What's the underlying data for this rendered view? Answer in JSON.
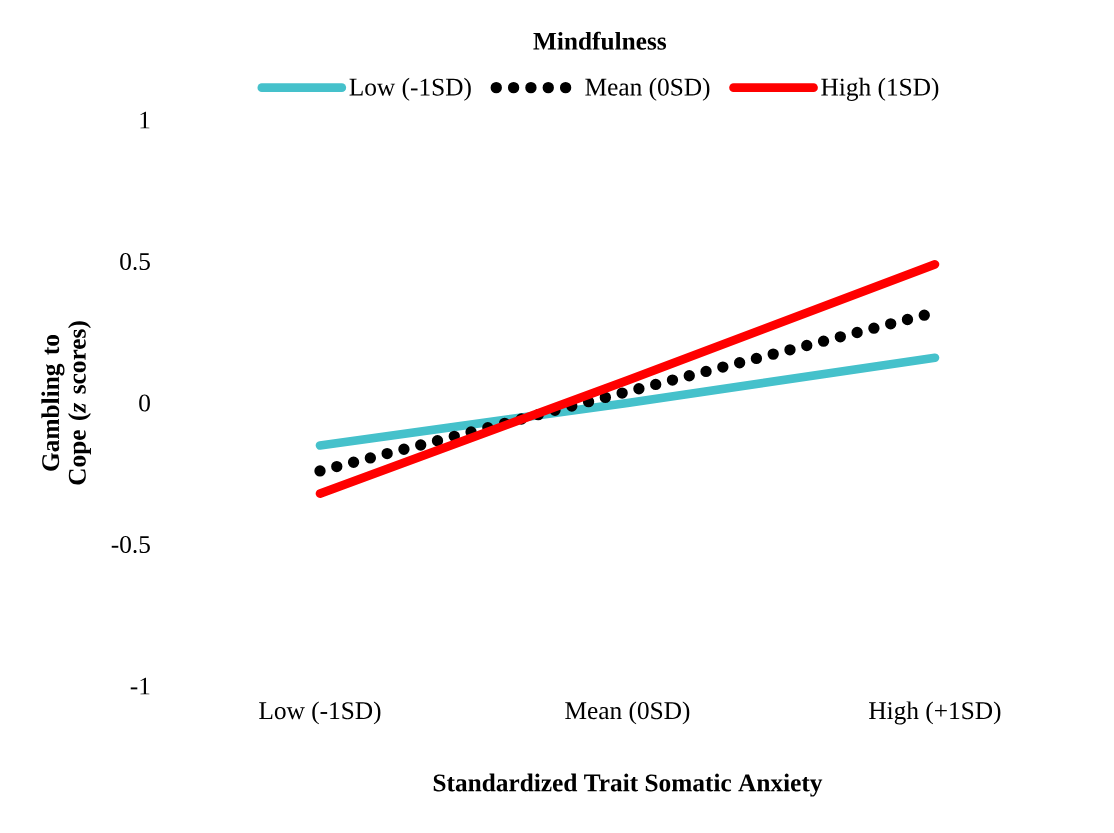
{
  "chart_data": {
    "type": "line",
    "xlabel": "Standardized Trait Somatic Anxiety",
    "ylabel": "Gambling to Cope (*z* scores)",
    "legend_title": "Mindfulness",
    "categories": [
      "Low (-1SD)",
      "Mean (0SD)",
      "High (+1SD)"
    ],
    "series": [
      {
        "name": "Low (-1SD)",
        "color": "#45c1cb",
        "line_style": "solid",
        "values": [
          -0.15,
          0.0,
          0.16
        ]
      },
      {
        "name": "Mean (0SD)",
        "color": "#000000",
        "line_style": "dotted",
        "values": [
          -0.24,
          0.04,
          0.32
        ]
      },
      {
        "name": "High (1SD)",
        "color": "#ff0000",
        "line_style": "solid",
        "values": [
          -0.32,
          0.08,
          0.49
        ]
      }
    ],
    "ylim": [
      -1,
      1
    ],
    "yticks": [
      -1,
      -0.5,
      0,
      0.5,
      1
    ],
    "grid": false,
    "legend": "top"
  }
}
